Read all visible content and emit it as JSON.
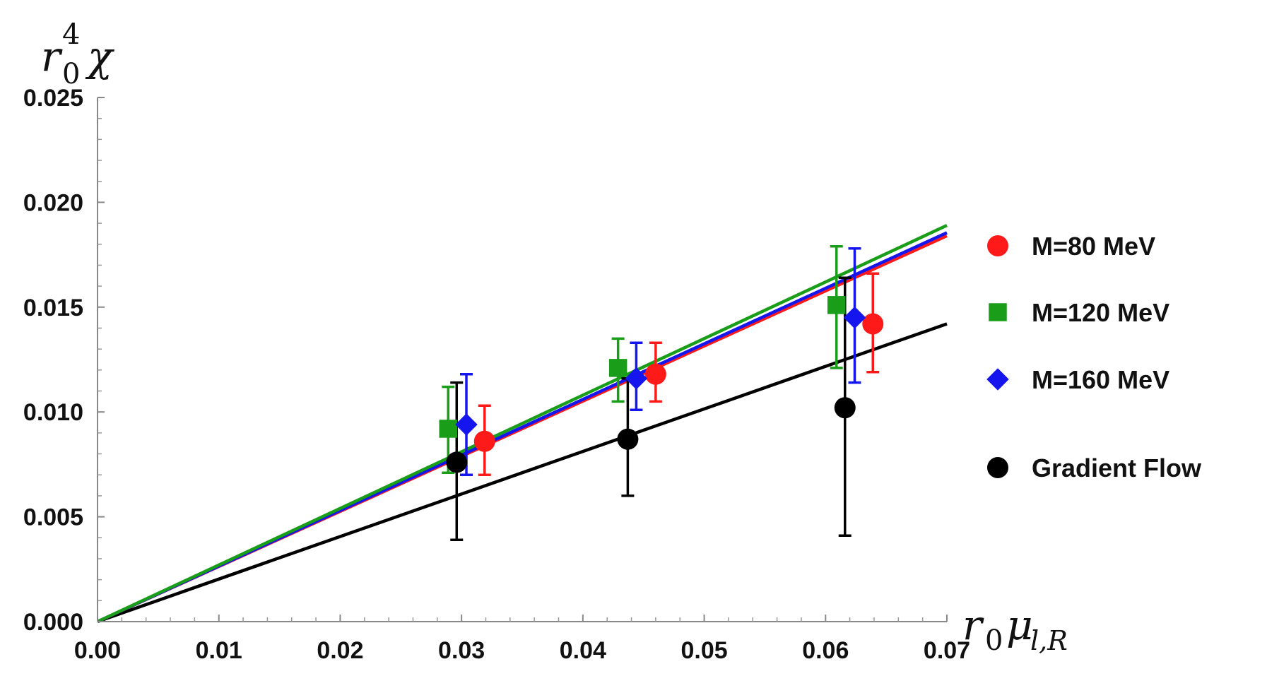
{
  "chart_data": {
    "type": "scatter",
    "xlabel": {
      "base": "r",
      "sub1": "0",
      "greek": "μ",
      "sub2": "l,R"
    },
    "ylabel": {
      "base": "r",
      "sub": "0",
      "sup": "4",
      "greek": "χ"
    },
    "xlim": [
      0.0,
      0.07
    ],
    "ylim": [
      0.0,
      0.025
    ],
    "x_ticks": [
      "0.00",
      "0.01",
      "0.02",
      "0.03",
      "0.04",
      "0.05",
      "0.06",
      "0.07"
    ],
    "y_ticks": [
      "0.000",
      "0.005",
      "0.010",
      "0.015",
      "0.020",
      "0.025"
    ],
    "grid": false,
    "legend_position": "right",
    "series": [
      {
        "name": "M=80 MeV",
        "color": "#ff1a1a",
        "marker": "circle",
        "points": [
          {
            "x": 0.0319,
            "y": 0.0086,
            "err_lo": 0.007,
            "err_hi": 0.0103
          },
          {
            "x": 0.046,
            "y": 0.0118,
            "err_lo": 0.0105,
            "err_hi": 0.0133
          },
          {
            "x": 0.0639,
            "y": 0.0142,
            "err_lo": 0.0119,
            "err_hi": 0.0166
          }
        ],
        "fit_slope": 0.2629
      },
      {
        "name": "M=120 MeV",
        "color": "#1a9e1a",
        "marker": "square",
        "points": [
          {
            "x": 0.0289,
            "y": 0.0092,
            "err_lo": 0.0071,
            "err_hi": 0.0112
          },
          {
            "x": 0.0429,
            "y": 0.0121,
            "err_lo": 0.0105,
            "err_hi": 0.0135
          },
          {
            "x": 0.0609,
            "y": 0.0151,
            "err_lo": 0.0121,
            "err_hi": 0.0179
          }
        ],
        "fit_slope": 0.27
      },
      {
        "name": "M=160 MeV",
        "color": "#1515ee",
        "marker": "diamond",
        "points": [
          {
            "x": 0.0304,
            "y": 0.0094,
            "err_lo": 0.007,
            "err_hi": 0.0118
          },
          {
            "x": 0.0444,
            "y": 0.0116,
            "err_lo": 0.0101,
            "err_hi": 0.0133
          },
          {
            "x": 0.0624,
            "y": 0.0145,
            "err_lo": 0.0114,
            "err_hi": 0.0178
          }
        ],
        "fit_slope": 0.265
      },
      {
        "name": "Gradient Flow",
        "color": "#000000",
        "marker": "circle",
        "points": [
          {
            "x": 0.0296,
            "y": 0.0076,
            "err_lo": 0.0039,
            "err_hi": 0.0114
          },
          {
            "x": 0.0437,
            "y": 0.0087,
            "err_lo": 0.006,
            "err_hi": 0.0116
          },
          {
            "x": 0.0616,
            "y": 0.0102,
            "err_lo": 0.0041,
            "err_hi": 0.0164
          }
        ],
        "fit_slope": 0.2029
      }
    ]
  }
}
